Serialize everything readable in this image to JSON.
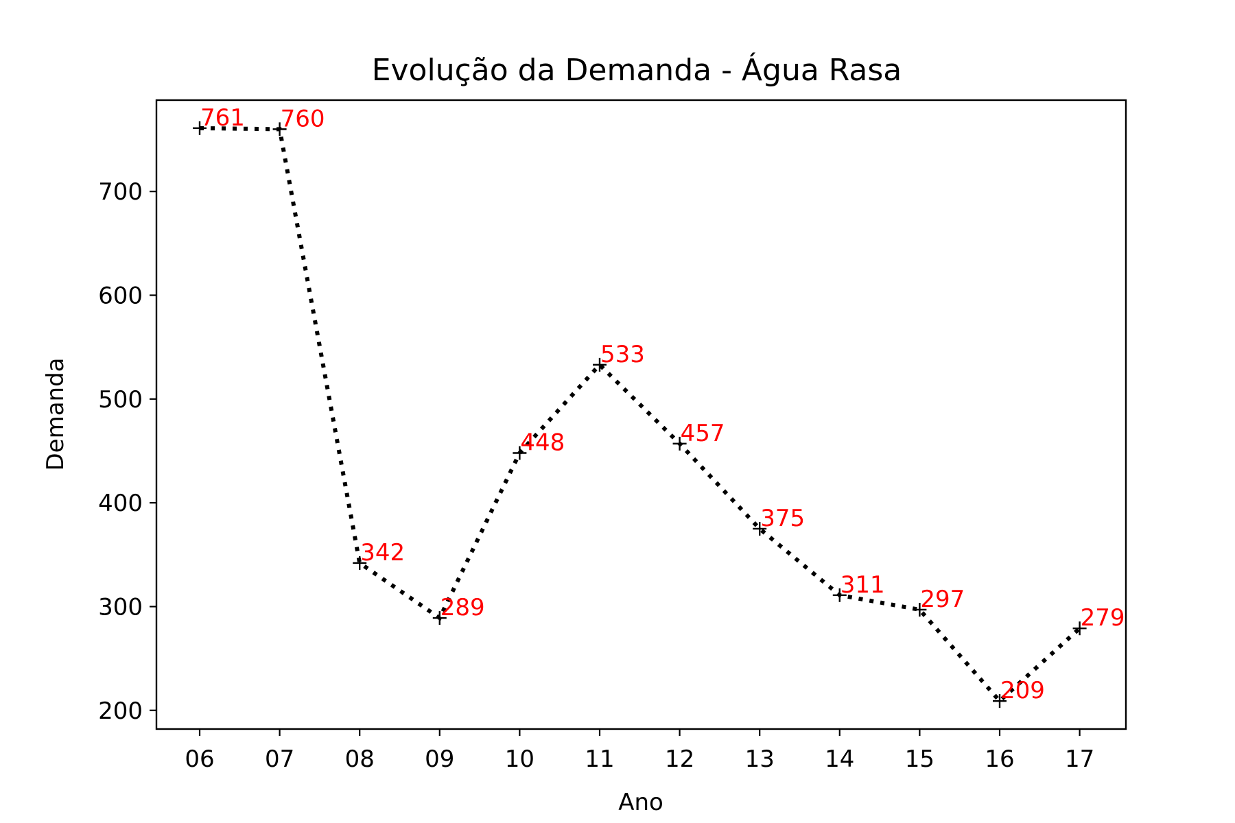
{
  "chart_data": {
    "type": "line",
    "title": "Evolução da Demanda - Água Rasa",
    "xlabel": "Ano",
    "ylabel": "Demanda",
    "categories": [
      "06",
      "07",
      "08",
      "09",
      "10",
      "11",
      "12",
      "13",
      "14",
      "15",
      "16",
      "17"
    ],
    "series": [
      {
        "values": [
          761,
          760,
          342,
          289,
          448,
          533,
          457,
          375,
          311,
          297,
          209,
          279
        ],
        "line_style": "dotted",
        "marker": "plus",
        "color": "#000000"
      }
    ],
    "data_labels": [
      "761",
      "760",
      "342",
      "289",
      "448",
      "533",
      "457",
      "375",
      "311",
      "297",
      "209",
      "279"
    ],
    "data_label_color": "#ff0000",
    "ylim": [
      182,
      788
    ],
    "yticks": [
      200,
      300,
      400,
      500,
      600,
      700
    ],
    "grid": false,
    "legend": "none"
  }
}
